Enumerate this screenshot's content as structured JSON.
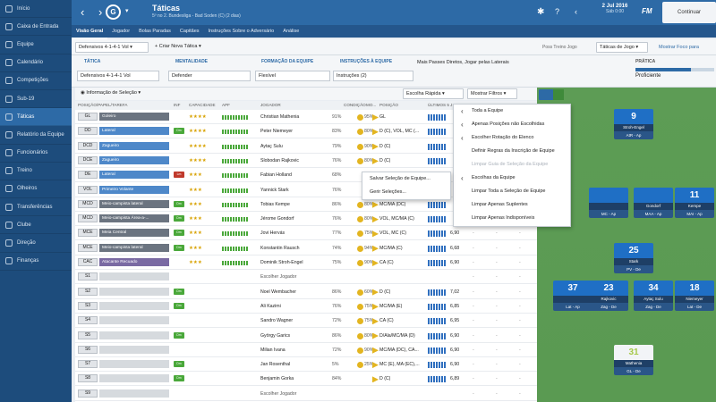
{
  "sidebar": {
    "items": [
      "Início",
      "Caixa de Entrada",
      "Equipe",
      "Calendário",
      "Competições",
      "Sub-19",
      "Táticas",
      "Relatório da Equipe",
      "Funcionários",
      "Treino",
      "Olheiros",
      "Transferências",
      "Clube",
      "Direção",
      "Finanças"
    ],
    "active_index": 6
  },
  "header": {
    "title": "Táticas",
    "subtitle": "5º no 2. Bundesliga - Bad Soden (C) (2 dias)",
    "club_logo": "G",
    "date_line1": "2 Jul 2016",
    "date_line2": "Sáb 0:00",
    "fm_label": "FM",
    "continue_label": "Continuar"
  },
  "tabs": [
    "Visão Geral",
    "Jogador",
    "Bolas Paradas",
    "Capitães",
    "Instruções Sobre o Adversário",
    "Análise"
  ],
  "toolbar": {
    "tactic_select": "Defensivos 4-1-4-1 Vol",
    "create_tactic": "Criar Nova Tática",
    "training_label": "Poss Treino Jogo",
    "game_tactics": "Táticas de Jogo",
    "show_more": "Mostrar Foco para"
  },
  "panels": {
    "tactic_label": "TÁTICA",
    "tactic_value": "Defensivos 4-1-4-1 Vol",
    "mentality_label": "MENTALIDADE",
    "mentality_value": "Defender",
    "team_shape_label": "FORMAÇÃO DA EQUIPE",
    "team_shape_value": "Flexível",
    "team_instr_label": "INSTRUÇÕES À EQUIPE",
    "team_instr_value": "Instruções (2)",
    "team_instr_text": "Mais Passes Diretos, Jogar pelas Laterais",
    "practice_label": "PRÁTICA",
    "practice_value": "Proficiente"
  },
  "table": {
    "selection_info": "Informação de Seleção",
    "quick_pick": "Escolha Rápida",
    "show_filters": "Mostrar Filtros",
    "headers": [
      "POSIÇÃO/PAPEL/TAREFA",
      "INF",
      "CAPACIDADE",
      "APF",
      "JOGADOR",
      "CONDIÇÃO",
      "MO...",
      "POSIÇÃO",
      "ÚLTIMOS 5 J..."
    ],
    "rows": [
      {
        "pos": "GL",
        "role": "Goleiro",
        "duty": "Defender",
        "inf": "",
        "stars": "★★★★",
        "player": "Christian Mathenia",
        "cond": "91%",
        "ball": "95%",
        "position": "GL",
        "rating": "",
        "role_color": "#6b7480"
      },
      {
        "pos": "DD",
        "role": "Lateral",
        "duty": "Defender",
        "inf": "Dm",
        "stars": "★★★★",
        "player": "Peter Niemeyer",
        "cond": "83%",
        "ball": "80%",
        "position": "D (C), VOL, MC (...",
        "rating": "",
        "role_color": "#4e88c9"
      },
      {
        "pos": "DCD",
        "role": "Zagueiro",
        "duty": "Defender",
        "inf": "",
        "stars": "★★★★",
        "player": "Aytaç Sulu",
        "cond": "79%",
        "ball": "90%",
        "position": "D (C)",
        "rating": "",
        "role_color": "#4e88c9"
      },
      {
        "pos": "DCE",
        "role": "Zagueiro",
        "duty": "Defender",
        "inf": "",
        "stars": "★★★★",
        "player": "Slobodan Rajkovic",
        "cond": "76%",
        "ball": "80%",
        "position": "D (C)",
        "rating": "",
        "role_color": "#4e88c9"
      },
      {
        "pos": "DE",
        "role": "Lateral",
        "duty": "Defender",
        "inf": "Lm",
        "stars": "★★★",
        "player": "Fabian Holland",
        "cond": "68%",
        "ball": "",
        "position": "",
        "rating": "",
        "role_color": "#4e88c9"
      },
      {
        "pos": "VOL",
        "role": "Primeiro Volante",
        "duty": "Defender",
        "inf": "",
        "stars": "★★★",
        "player": "Yannick Stark",
        "cond": "76%",
        "ball": "",
        "position": "",
        "rating": "",
        "role_color": "#4e88c9"
      },
      {
        "pos": "MCD",
        "role": "Meio-campista lateral",
        "duty": "Defender",
        "inf": "Dm",
        "stars": "★★★",
        "player": "Tobias Kempe",
        "cond": "86%",
        "ball": "80%",
        "position": "MC/MA (DC)",
        "rating": "",
        "role_color": "#6b7480"
      },
      {
        "pos": "MCD",
        "role": "Meio-campista Área-a-...",
        "duty": "Apoiar",
        "inf": "Dm",
        "stars": "★★★",
        "player": "Jérome Gondorf",
        "cond": "76%",
        "ball": "80%",
        "position": "VOL, MC/MA (C)",
        "rating": "",
        "role_color": "#6b7480"
      },
      {
        "pos": "MCE",
        "role": "Meia Central",
        "duty": "Apoiar",
        "inf": "Dm",
        "stars": "★★★",
        "player": "Jovi Hervás",
        "cond": "77%",
        "ball": "75%",
        "position": "VOL, MC (C)",
        "rating": "6,90",
        "role_color": "#6b7480"
      },
      {
        "pos": "MCE",
        "role": "Meio-campista lateral",
        "duty": "Apoiar",
        "inf": "Dm",
        "stars": "★★★",
        "player": "Konstantin Rausch",
        "cond": "74%",
        "ball": "94%",
        "position": "MC/MA (C)",
        "rating": "6,68",
        "role_color": "#6b7480"
      },
      {
        "pos": "CAC",
        "role": "Atacante Recuado",
        "duty": "Apoiar",
        "inf": "",
        "stars": "★★★",
        "player": "Dominik Stroh-Engel",
        "cond": "75%",
        "ball": "90%",
        "position": "CA (C)",
        "rating": "6,90",
        "role_color": "#7a6aa3"
      },
      {
        "pos": "S1",
        "role": "",
        "duty": "",
        "inf": "",
        "stars": "",
        "player": "Escolher Jogador",
        "cond": "",
        "ball": "",
        "position": "",
        "rating": "",
        "role_color": ""
      },
      {
        "pos": "S2",
        "role": "",
        "duty": "",
        "inf": "Dm",
        "stars": "",
        "player": "Noel Wembacher",
        "cond": "86%",
        "ball": "60%",
        "position": "D (C)",
        "rating": "7,02",
        "role_color": ""
      },
      {
        "pos": "S3",
        "role": "",
        "duty": "",
        "inf": "Dm",
        "stars": "",
        "player": "Ali Kazimi",
        "cond": "76%",
        "ball": "75%",
        "position": "MC/MA (E)",
        "rating": "6,85",
        "role_color": ""
      },
      {
        "pos": "S4",
        "role": "",
        "duty": "",
        "inf": "",
        "stars": "",
        "player": "Sandro Wagner",
        "cond": "72%",
        "ball": "75%",
        "position": "CA (C)",
        "rating": "6,95",
        "role_color": ""
      },
      {
        "pos": "S5",
        "role": "",
        "duty": "",
        "inf": "Dm",
        "stars": "",
        "player": "György Garics",
        "cond": "86%",
        "ball": "80%",
        "position": "D/Ala/MC/MA (D)",
        "rating": "6,90",
        "role_color": ""
      },
      {
        "pos": "S6",
        "role": "",
        "duty": "",
        "inf": "",
        "stars": "",
        "player": "Milian Ivana",
        "cond": "72%",
        "ball": "90%",
        "position": "MC/MA (DC), CA...",
        "rating": "6,90",
        "role_color": ""
      },
      {
        "pos": "S7",
        "role": "",
        "duty": "",
        "inf": "Dm",
        "stars": "",
        "player": "Jan Rosenthal",
        "cond": "5%",
        "ball": "25%",
        "position": "MC (E), MA (EC),...",
        "rating": "6,90",
        "role_color": ""
      },
      {
        "pos": "S8",
        "role": "",
        "duty": "",
        "inf": "Dm",
        "stars": "",
        "player": "Benjamin Gorka",
        "cond": "84%",
        "ball": "",
        "position": "D (C)",
        "rating": "6,89",
        "role_color": ""
      },
      {
        "pos": "S9",
        "role": "",
        "duty": "",
        "inf": "",
        "stars": "",
        "player": "Escolher Jogador",
        "cond": "",
        "ball": "",
        "position": "",
        "rating": "",
        "role_color": ""
      }
    ]
  },
  "context_menu": {
    "items": [
      {
        "label": "Toda a Equipe",
        "arrow": true,
        "disabled": false
      },
      {
        "label": "Apenas Posições não Escolhidas",
        "arrow": true,
        "disabled": false
      },
      {
        "label": "Escolher Rotação do Elenco",
        "arrow": true,
        "disabled": false
      },
      {
        "label": "Definir Regras da Inscrição de Equipe",
        "arrow": false,
        "disabled": false
      },
      {
        "label": "Limpar Guia de Seleção da Equipe",
        "arrow": false,
        "disabled": true
      },
      {
        "label": "Escolhas da Equipe",
        "arrow": true,
        "disabled": false
      },
      {
        "label": "Limpar Toda a Seleção de Equipe",
        "arrow": false,
        "disabled": false
      },
      {
        "label": "Limpar Apenas Suplentes",
        "arrow": false,
        "disabled": false
      },
      {
        "label": "Limpar Apenas Indisponíveis",
        "arrow": false,
        "disabled": false
      }
    ]
  },
  "submenu": {
    "items": [
      "Salvar Seleção de Equipe...",
      "Gerir Seleções..."
    ]
  },
  "pitch": {
    "players": [
      {
        "num": "9",
        "name": "Stroh-Engel",
        "role": "AtR - Ap"
      },
      {
        "num": "",
        "name": "",
        "role": "MC - Ap"
      },
      {
        "num": "",
        "name": "Gondorf",
        "role": "MAA - Ap"
      },
      {
        "num": "11",
        "name": "Kempe",
        "role": "MAI - Ap"
      },
      {
        "num": "25",
        "name": "Stark",
        "role": "PV - De"
      },
      {
        "num": "37",
        "name": "",
        "role": "Lat - Ap"
      },
      {
        "num": "23",
        "name": "Rajkovic",
        "role": "Zag - De"
      },
      {
        "num": "34",
        "name": "Aytaç Sulu",
        "role": "Zag - De"
      },
      {
        "num": "18",
        "name": "Niemeyer",
        "role": "Lat - De"
      },
      {
        "num": "31",
        "name": "Mathenia",
        "role": "GL - De"
      }
    ]
  }
}
